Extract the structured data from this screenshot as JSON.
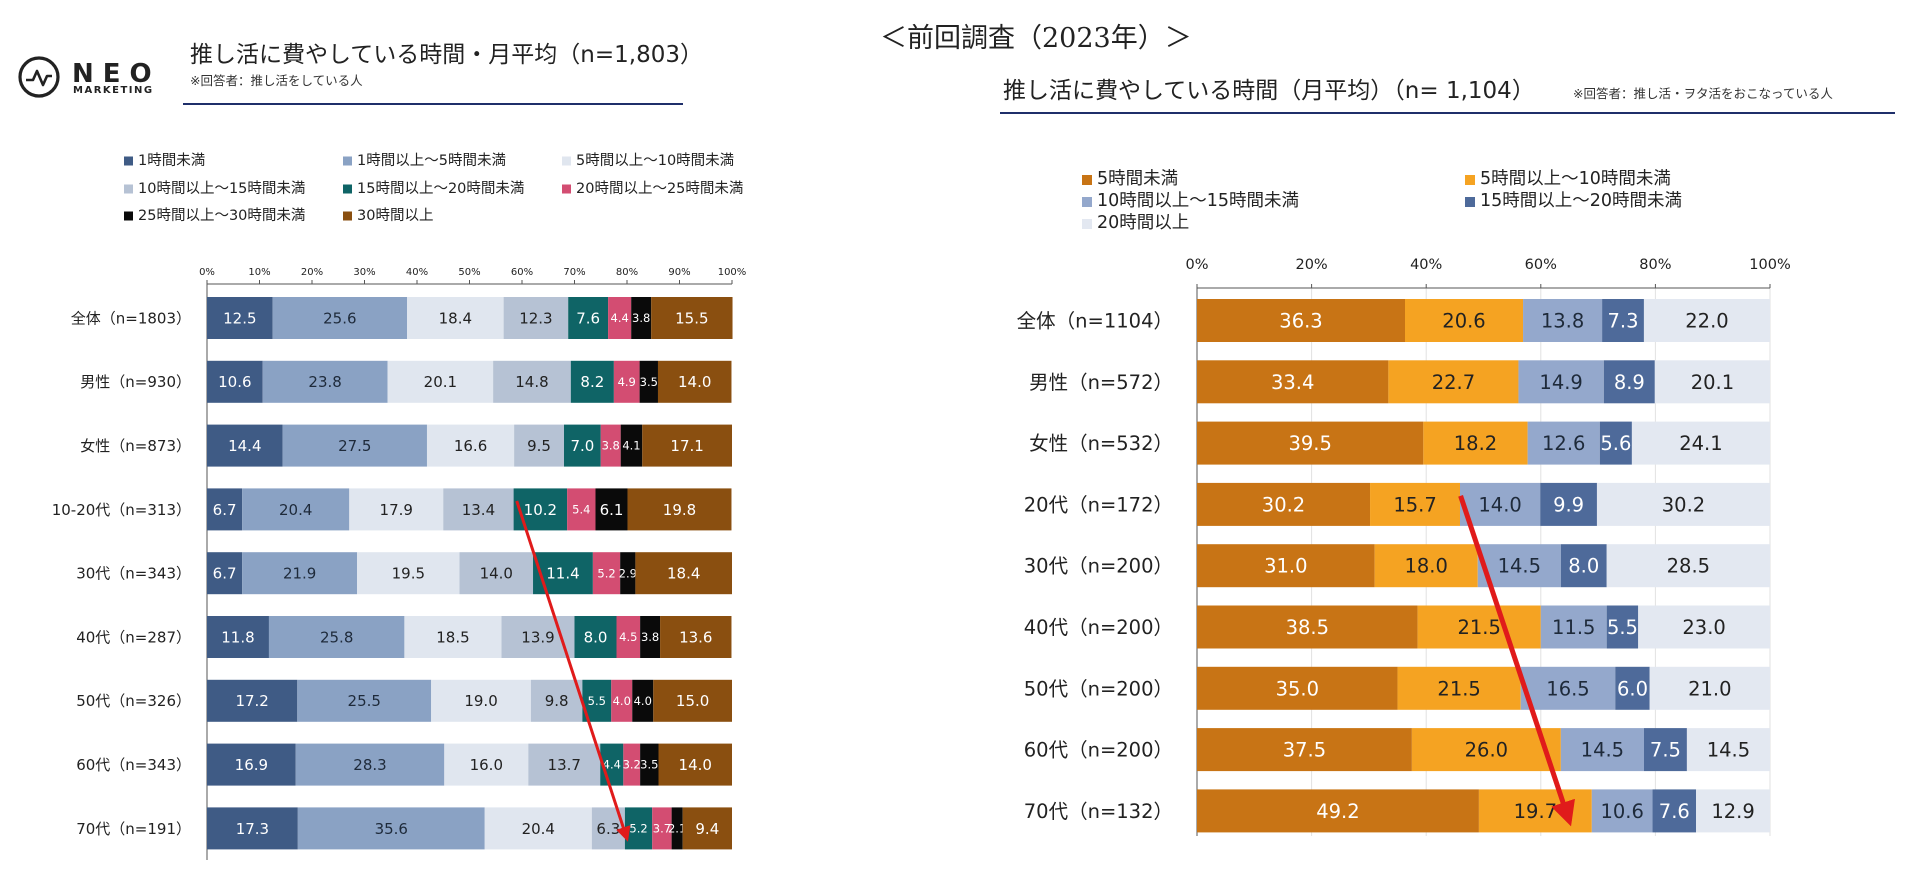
{
  "logo": {
    "brand": "NEO",
    "sub": "MARKETING"
  },
  "left": {
    "title": "推し活に費やしている時間・月平均（n=1,803）",
    "note": "※回答者：推し活をしている人"
  },
  "right": {
    "header_label": "＜前回調査（2023年）＞",
    "title": "推し活に費やしている時間（月平均）（n= 1,104）",
    "note": "※回答者：推し活・ヲタ活をおこなっている人"
  },
  "chart_data": [
    {
      "type": "bar",
      "orientation": "horizontal",
      "stacked": true,
      "percent": true,
      "title": "推し活に費やしている時間・月平均（n=1,803）",
      "xlim": [
        0,
        100
      ],
      "xticks": [
        "0%",
        "10%",
        "20%",
        "30%",
        "40%",
        "50%",
        "60%",
        "70%",
        "80%",
        "90%",
        "100%"
      ],
      "categories": [
        "全体（n=1803）",
        "男性（n=930）",
        "女性（n=873）",
        "10-20代（n=313）",
        "30代（n=343）",
        "40代（n=287）",
        "50代（n=326）",
        "60代（n=343）",
        "70代（n=191）"
      ],
      "series": [
        {
          "name": "1時間未満",
          "color": "#3f5b85",
          "text_color": "#ffffff",
          "values": [
            12.5,
            10.6,
            14.4,
            6.7,
            6.7,
            11.8,
            17.2,
            16.9,
            17.3
          ],
          "labels": [
            "12.5",
            "10.6",
            "14.4",
            "6.7",
            "6.7",
            "11.8",
            "17.2",
            "16.9",
            "17.3"
          ]
        },
        {
          "name": "1時間以上～5時間未満",
          "color": "#8aa2c4",
          "text_color": "#1e2a3a",
          "values": [
            25.6,
            23.8,
            27.5,
            20.4,
            21.9,
            25.8,
            25.5,
            28.3,
            35.6
          ],
          "labels": [
            "25.6",
            "23.8",
            "27.5",
            "20.4",
            "21.9",
            "25.8",
            "25.5",
            "28.3",
            "35.6"
          ]
        },
        {
          "name": "5時間以上～10時間未満",
          "color": "#e0e6ef",
          "text_color": "#222222",
          "values": [
            18.4,
            20.1,
            16.6,
            17.9,
            19.5,
            18.5,
            19.0,
            16.0,
            20.4
          ],
          "labels": [
            "18.4",
            "20.1",
            "16.6",
            "17.9",
            "19.5",
            "18.5",
            "19.0",
            "16.0",
            "20.4"
          ]
        },
        {
          "name": "10時間以上～15時間未満",
          "color": "#b6c2d4",
          "text_color": "#222222",
          "values": [
            12.3,
            14.8,
            9.5,
            13.4,
            14.0,
            13.9,
            9.8,
            13.7,
            6.3
          ],
          "labels": [
            "12.3",
            "14.8",
            "9.5",
            "13.4",
            "14.0",
            "13.9",
            "9.8",
            "13.7",
            "6.3"
          ]
        },
        {
          "name": "15時間以上～20時間未満",
          "color": "#0f6466",
          "text_color": "#ffffff",
          "values": [
            7.6,
            8.2,
            7.0,
            10.2,
            11.4,
            8.0,
            5.5,
            4.4,
            5.2
          ],
          "labels": [
            "7.6",
            "8.2",
            "7.0",
            "10.2",
            "11.4",
            "8.0",
            "5.5",
            "4.4",
            "5.2"
          ]
        },
        {
          "name": "20時間以上～25時間未満",
          "color": "#d34d72",
          "text_color": "#ffffff",
          "values": [
            4.4,
            4.9,
            3.8,
            5.4,
            5.2,
            4.5,
            4.0,
            3.2,
            3.7
          ],
          "labels": [
            "4.4",
            "4.9",
            "3.8",
            "5.4",
            "5.2",
            "4.5",
            "4.0",
            "3.2",
            "3.7"
          ]
        },
        {
          "name": "25時間以上～30時間未満",
          "color": "#0a0a0a",
          "text_color": "#ffffff",
          "values": [
            3.8,
            3.5,
            4.1,
            6.1,
            2.9,
            3.8,
            4.0,
            3.5,
            2.1
          ],
          "labels": [
            "3.8",
            "3.5",
            "4.1",
            "6.1",
            "2.9",
            "3.8",
            "4.0",
            "3.5",
            "2.1"
          ]
        },
        {
          "name": "30時間以上",
          "color": "#8a4f10",
          "text_color": "#ffffff",
          "values": [
            15.5,
            14.0,
            17.1,
            19.8,
            18.4,
            13.6,
            15.0,
            14.0,
            9.4
          ],
          "labels": [
            "15.5",
            "14.0",
            "17.1",
            "19.8",
            "18.4",
            "13.6",
            "15.0",
            "14.0",
            "9.4"
          ]
        }
      ],
      "annotation": {
        "type": "arrow",
        "color": "#e01b1b",
        "from": {
          "category": "10-20代（n=313）",
          "x": 59
        },
        "to": {
          "category": "70代（n=191）",
          "x": 80
        }
      }
    },
    {
      "type": "bar",
      "orientation": "horizontal",
      "stacked": true,
      "percent": true,
      "title": "推し活に費やしている時間（月平均）（n= 1,104）",
      "xlim": [
        0,
        100
      ],
      "xticks": [
        "0%",
        "20%",
        "40%",
        "60%",
        "80%",
        "100%"
      ],
      "categories": [
        "全体（n=1104）",
        "男性（n=572）",
        "女性（n=532）",
        "20代（n=172）",
        "30代（n=200）",
        "40代（n=200）",
        "50代（n=200）",
        "60代（n=200）",
        "70代（n=132）"
      ],
      "series": [
        {
          "name": "5時間未満",
          "color": "#c87415",
          "text_color": "#ffffff",
          "values": [
            36.3,
            33.4,
            39.5,
            30.2,
            31.0,
            38.5,
            35.0,
            37.5,
            49.2
          ],
          "labels": [
            "36.3",
            "33.4",
            "39.5",
            "30.2",
            "31.0",
            "38.5",
            "35.0",
            "37.5",
            "49.2"
          ]
        },
        {
          "name": "5時間以上～10時間未満",
          "color": "#f5a322",
          "text_color": "#222222",
          "values": [
            20.6,
            22.7,
            18.2,
            15.7,
            18.0,
            21.5,
            21.5,
            26.0,
            19.7
          ],
          "labels": [
            "20.6",
            "22.7",
            "18.2",
            "15.7",
            "18.0",
            "21.5",
            "21.5",
            "26.0",
            "19.7"
          ]
        },
        {
          "name": "10時間以上～15時間未満",
          "color": "#94a8cc",
          "text_color": "#1e2a3a",
          "values": [
            13.8,
            14.9,
            12.6,
            14.0,
            14.5,
            11.5,
            16.5,
            14.5,
            10.6
          ],
          "labels": [
            "13.8",
            "14.9",
            "12.6",
            "14.0",
            "14.5",
            "11.5",
            "16.5",
            "14.5",
            "10.6"
          ]
        },
        {
          "name": "15時間以上～20時間未満",
          "color": "#4e6a9a",
          "text_color": "#ffffff",
          "values": [
            7.3,
            8.9,
            5.6,
            9.9,
            8.0,
            5.5,
            6.0,
            7.5,
            7.6
          ],
          "labels": [
            "7.3",
            "8.9",
            "5.6",
            "9.9",
            "8.0",
            "5.5",
            "6.0",
            "7.5",
            "7.6"
          ]
        },
        {
          "name": "20時間以上",
          "color": "#e3e8f1",
          "text_color": "#222222",
          "values": [
            22.0,
            20.1,
            24.1,
            30.2,
            28.5,
            23.0,
            21.0,
            14.5,
            12.9
          ],
          "labels": [
            "22.0",
            "20.1",
            "24.1",
            "30.2",
            "28.5",
            "23.0",
            "21.0",
            "14.5",
            "12.9"
          ]
        }
      ],
      "annotation": {
        "type": "arrow",
        "color": "#e01b1b",
        "from": {
          "category": "20代（n=172）",
          "x": 46
        },
        "to": {
          "category": "70代（n=132）",
          "x": 65
        }
      }
    }
  ]
}
